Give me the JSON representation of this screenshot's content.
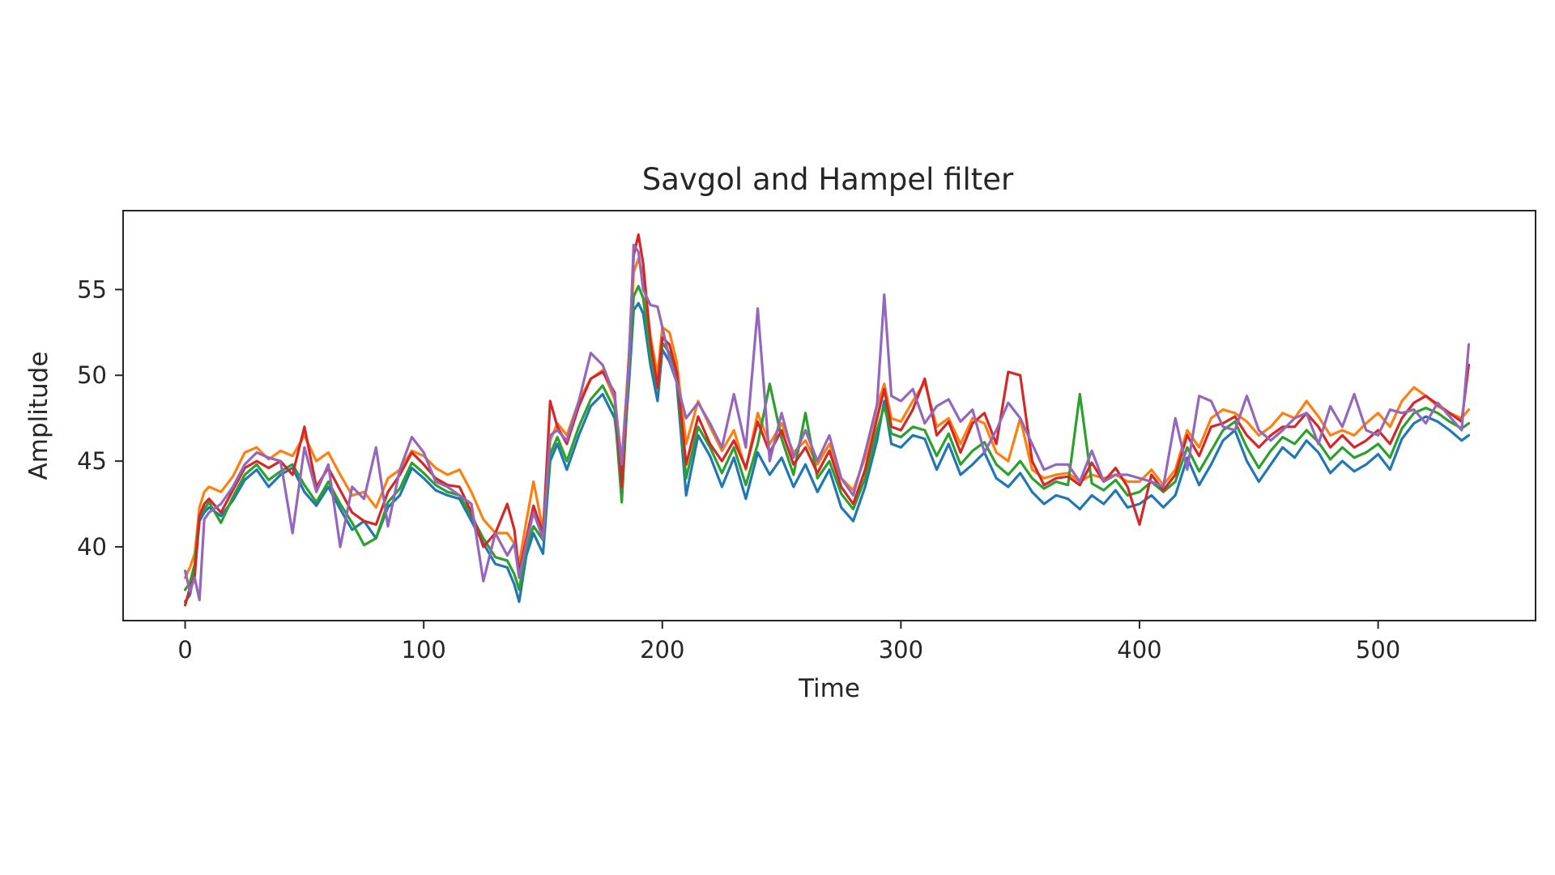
{
  "chart_data": {
    "type": "line",
    "title": "Savgol and Hampel filter",
    "xlabel": "Time",
    "ylabel": "Amplitude",
    "xlim": [
      -26,
      566
    ],
    "ylim": [
      35.7,
      59.6
    ],
    "xticks": [
      0,
      100,
      200,
      300,
      400,
      500
    ],
    "yticks": [
      40,
      45,
      50,
      55
    ],
    "grid": false,
    "colors": [
      "#1f77b4",
      "#ff7f0e",
      "#2ca02c",
      "#d62728",
      "#9467bd"
    ],
    "series": [
      {
        "x": [
          0,
          2,
          4,
          6,
          8,
          10,
          15,
          20,
          25,
          30,
          35,
          40,
          45,
          50,
          55,
          60,
          65,
          70,
          75,
          80,
          85,
          90,
          95,
          100,
          105,
          110,
          115,
          120,
          125,
          130,
          135,
          138,
          140,
          143,
          146,
          150,
          153,
          156,
          160,
          165,
          170,
          175,
          180,
          183,
          186,
          188,
          190,
          192,
          195,
          198,
          200,
          203,
          206,
          210,
          215,
          220,
          225,
          230,
          235,
          240,
          245,
          250,
          255,
          260,
          265,
          270,
          275,
          280,
          285,
          290,
          293,
          296,
          300,
          305,
          310,
          315,
          320,
          325,
          330,
          335,
          340,
          345,
          350,
          355,
          360,
          365,
          370,
          375,
          380,
          385,
          390,
          395,
          400,
          405,
          410,
          415,
          420,
          425,
          430,
          435,
          440,
          445,
          450,
          455,
          460,
          465,
          470,
          475,
          480,
          485,
          490,
          495,
          500,
          505,
          510,
          515,
          520,
          525,
          530,
          535,
          538
        ],
        "values": [
          36.8,
          37.2,
          38.6,
          41.5,
          42.0,
          42.3,
          41.8,
          42.7,
          43.9,
          44.5,
          43.5,
          44.2,
          44.6,
          43.2,
          42.4,
          43.5,
          42.2,
          41.0,
          41.5,
          40.5,
          42.3,
          43.0,
          44.6,
          44.0,
          43.3,
          43.0,
          42.8,
          41.5,
          40.2,
          39.0,
          38.8,
          37.8,
          36.8,
          39.5,
          40.8,
          39.6,
          45.0,
          46.0,
          44.5,
          46.5,
          48.2,
          48.9,
          47.5,
          44.0,
          49.5,
          53.8,
          54.2,
          53.6,
          50.6,
          48.5,
          51.5,
          50.8,
          49.6,
          43.0,
          46.5,
          45.3,
          43.5,
          45.2,
          42.8,
          45.5,
          44.2,
          45.2,
          43.5,
          44.8,
          43.2,
          44.5,
          42.3,
          41.5,
          43.5,
          46.2,
          48.5,
          46.0,
          45.8,
          46.5,
          46.3,
          44.5,
          46.0,
          44.2,
          44.8,
          45.5,
          44.0,
          43.5,
          44.3,
          43.2,
          42.5,
          43.0,
          42.8,
          42.2,
          43.0,
          42.5,
          43.3,
          42.3,
          42.5,
          43.0,
          42.3,
          43.0,
          45.2,
          43.6,
          44.8,
          46.2,
          46.8,
          45.0,
          43.8,
          44.8,
          45.8,
          45.2,
          46.2,
          45.5,
          44.3,
          45.0,
          44.4,
          44.8,
          45.4,
          44.5,
          46.3,
          47.2,
          47.6,
          47.3,
          46.8,
          46.2,
          46.5
        ]
      },
      {
        "x": [
          0,
          2,
          4,
          6,
          8,
          10,
          15,
          20,
          25,
          30,
          35,
          40,
          45,
          50,
          55,
          60,
          65,
          70,
          75,
          80,
          85,
          90,
          95,
          100,
          105,
          110,
          115,
          120,
          125,
          130,
          135,
          138,
          140,
          143,
          146,
          150,
          153,
          156,
          160,
          165,
          170,
          175,
          180,
          183,
          186,
          188,
          190,
          192,
          195,
          198,
          200,
          203,
          206,
          210,
          215,
          220,
          225,
          230,
          235,
          240,
          245,
          250,
          255,
          260,
          265,
          270,
          275,
          280,
          285,
          290,
          293,
          296,
          300,
          305,
          310,
          315,
          320,
          325,
          330,
          335,
          340,
          345,
          350,
          355,
          360,
          365,
          370,
          375,
          380,
          385,
          390,
          395,
          400,
          405,
          410,
          415,
          420,
          425,
          430,
          435,
          440,
          445,
          450,
          455,
          460,
          465,
          470,
          475,
          480,
          485,
          490,
          495,
          500,
          505,
          510,
          515,
          520,
          525,
          530,
          535,
          538
        ],
        "values": [
          38.2,
          38.8,
          39.6,
          42.3,
          43.2,
          43.5,
          43.2,
          44.1,
          45.5,
          45.8,
          45.1,
          45.6,
          45.3,
          46.5,
          45.0,
          45.5,
          44.2,
          43.0,
          43.2,
          42.3,
          44.0,
          44.5,
          45.6,
          45.3,
          44.6,
          44.2,
          44.5,
          43.2,
          41.6,
          40.8,
          40.8,
          40.2,
          39.0,
          41.5,
          43.8,
          41.0,
          46.2,
          47.2,
          46.5,
          48.5,
          49.8,
          50.3,
          48.6,
          45.0,
          51.0,
          56.0,
          56.8,
          55.8,
          52.3,
          50.0,
          52.8,
          52.5,
          50.8,
          46.0,
          48.5,
          47.0,
          45.6,
          46.8,
          44.5,
          47.8,
          46.0,
          47.2,
          45.5,
          46.2,
          44.8,
          46.0,
          44.0,
          43.3,
          45.2,
          48.2,
          49.5,
          47.5,
          47.3,
          48.5,
          49.6,
          47.0,
          47.5,
          46.0,
          47.5,
          47.2,
          45.5,
          45.0,
          47.5,
          44.5,
          44.0,
          44.2,
          44.3,
          43.8,
          44.2,
          44.0,
          44.2,
          43.8,
          43.8,
          44.5,
          43.6,
          44.5,
          46.8,
          45.8,
          47.5,
          48.0,
          47.8,
          47.3,
          46.5,
          47.0,
          47.8,
          47.5,
          48.5,
          47.6,
          46.5,
          46.8,
          46.5,
          47.2,
          47.8,
          47.0,
          48.5,
          49.3,
          48.8,
          48.2,
          47.8,
          47.5,
          48.0
        ]
      },
      {
        "x": [
          0,
          2,
          4,
          6,
          8,
          10,
          15,
          20,
          25,
          30,
          35,
          40,
          45,
          50,
          55,
          60,
          65,
          70,
          75,
          80,
          85,
          90,
          95,
          100,
          105,
          110,
          115,
          120,
          125,
          130,
          135,
          138,
          140,
          143,
          146,
          150,
          153,
          156,
          160,
          165,
          170,
          175,
          180,
          183,
          186,
          188,
          190,
          192,
          195,
          198,
          200,
          203,
          206,
          210,
          215,
          220,
          225,
          230,
          235,
          240,
          245,
          250,
          255,
          260,
          265,
          270,
          275,
          280,
          285,
          290,
          293,
          296,
          300,
          305,
          310,
          315,
          320,
          325,
          330,
          335,
          340,
          345,
          350,
          355,
          360,
          365,
          370,
          375,
          380,
          385,
          390,
          395,
          400,
          405,
          410,
          415,
          420,
          425,
          430,
          435,
          440,
          445,
          450,
          455,
          460,
          465,
          470,
          475,
          480,
          485,
          490,
          495,
          500,
          505,
          510,
          515,
          520,
          525,
          530,
          535,
          538
        ],
        "values": [
          37.5,
          37.9,
          39.0,
          41.8,
          42.2,
          42.6,
          41.4,
          42.9,
          44.2,
          44.8,
          43.9,
          44.4,
          44.8,
          43.6,
          42.6,
          43.8,
          42.5,
          41.4,
          40.1,
          40.5,
          42.6,
          43.4,
          44.9,
          44.3,
          43.6,
          43.2,
          43.0,
          41.8,
          40.5,
          39.4,
          39.2,
          38.4,
          37.5,
          40.0,
          41.2,
          40.4,
          45.4,
          46.4,
          45.0,
          47.0,
          48.6,
          49.4,
          48.0,
          42.6,
          50.2,
          54.6,
          55.2,
          54.5,
          51.2,
          49.2,
          51.9,
          51.3,
          50.0,
          44.0,
          47.0,
          45.8,
          44.3,
          45.8,
          43.6,
          46.0,
          49.5,
          46.3,
          44.2,
          47.8,
          44.0,
          45.0,
          43.1,
          42.2,
          44.0,
          46.8,
          48.2,
          46.6,
          46.4,
          47.0,
          46.8,
          45.3,
          46.6,
          44.8,
          45.6,
          46.1,
          44.8,
          44.2,
          45.0,
          44.0,
          43.4,
          43.8,
          43.6,
          48.9,
          43.7,
          43.3,
          43.9,
          43.0,
          43.2,
          43.8,
          43.2,
          43.8,
          45.8,
          44.4,
          45.6,
          46.8,
          47.3,
          45.8,
          44.6,
          45.6,
          46.4,
          46.0,
          46.8,
          46.1,
          45.1,
          45.8,
          45.2,
          45.5,
          46.0,
          45.2,
          46.9,
          47.8,
          48.1,
          47.8,
          47.3,
          46.9,
          47.2
        ]
      },
      {
        "x": [
          0,
          2,
          4,
          6,
          8,
          10,
          15,
          20,
          25,
          30,
          35,
          40,
          45,
          50,
          55,
          60,
          65,
          70,
          75,
          80,
          85,
          90,
          95,
          100,
          105,
          110,
          115,
          120,
          125,
          130,
          135,
          138,
          140,
          143,
          146,
          150,
          153,
          156,
          160,
          165,
          170,
          175,
          180,
          183,
          186,
          188,
          190,
          192,
          195,
          198,
          200,
          203,
          206,
          210,
          215,
          220,
          225,
          230,
          235,
          240,
          245,
          250,
          255,
          260,
          265,
          270,
          275,
          280,
          285,
          290,
          293,
          296,
          300,
          305,
          310,
          315,
          320,
          325,
          330,
          335,
          340,
          345,
          350,
          355,
          360,
          365,
          370,
          375,
          380,
          385,
          390,
          395,
          400,
          405,
          410,
          415,
          420,
          425,
          430,
          435,
          440,
          445,
          450,
          455,
          460,
          465,
          470,
          475,
          480,
          485,
          490,
          495,
          500,
          505,
          510,
          515,
          520,
          525,
          530,
          535,
          538
        ],
        "values": [
          36.6,
          37.6,
          38.3,
          41.8,
          42.5,
          42.8,
          42.0,
          43.3,
          44.6,
          45.0,
          44.6,
          45.0,
          44.2,
          47.0,
          43.5,
          44.6,
          43.3,
          42.0,
          41.5,
          41.3,
          43.2,
          44.2,
          45.5,
          44.8,
          44.0,
          43.6,
          43.5,
          42.0,
          40.0,
          40.8,
          42.5,
          41.0,
          38.5,
          40.5,
          42.4,
          40.8,
          48.5,
          47.0,
          46.0,
          48.2,
          49.8,
          50.2,
          49.0,
          43.5,
          51.0,
          57.0,
          58.2,
          56.5,
          52.0,
          49.3,
          52.2,
          51.8,
          50.2,
          44.8,
          47.6,
          46.0,
          45.0,
          46.2,
          44.6,
          47.3,
          45.5,
          46.8,
          44.8,
          45.8,
          44.3,
          45.6,
          43.5,
          42.5,
          44.5,
          47.5,
          49.2,
          47.0,
          46.8,
          48.0,
          49.8,
          46.5,
          47.3,
          45.5,
          47.2,
          47.8,
          46.0,
          50.2,
          50.0,
          45.0,
          43.6,
          44.0,
          44.1,
          43.6,
          44.9,
          43.8,
          44.6,
          43.5,
          41.3,
          44.2,
          43.3,
          44.2,
          46.5,
          45.3,
          47.0,
          47.2,
          47.6,
          46.5,
          45.8,
          46.5,
          47.0,
          47.0,
          47.8,
          47.0,
          45.8,
          46.5,
          45.8,
          46.2,
          46.8,
          46.0,
          47.5,
          48.4,
          48.8,
          48.3,
          47.8,
          47.3,
          50.6
        ]
      },
      {
        "x": [
          0,
          2,
          4,
          6,
          8,
          10,
          15,
          20,
          25,
          30,
          35,
          40,
          45,
          50,
          55,
          60,
          65,
          70,
          75,
          80,
          85,
          90,
          95,
          100,
          105,
          110,
          115,
          120,
          125,
          130,
          135,
          138,
          140,
          143,
          146,
          150,
          153,
          156,
          160,
          165,
          170,
          175,
          180,
          183,
          186,
          188,
          190,
          192,
          195,
          198,
          200,
          203,
          206,
          210,
          215,
          220,
          225,
          230,
          235,
          240,
          245,
          250,
          255,
          260,
          265,
          270,
          275,
          280,
          285,
          290,
          293,
          296,
          300,
          305,
          310,
          315,
          320,
          325,
          330,
          335,
          340,
          345,
          350,
          355,
          360,
          365,
          370,
          375,
          380,
          385,
          390,
          395,
          400,
          405,
          410,
          415,
          420,
          425,
          430,
          435,
          440,
          445,
          450,
          455,
          460,
          465,
          470,
          475,
          480,
          485,
          490,
          495,
          500,
          505,
          510,
          515,
          520,
          525,
          530,
          535,
          538
        ],
        "values": [
          38.6,
          37.4,
          38.2,
          36.9,
          41.6,
          42.0,
          42.5,
          43.5,
          44.8,
          45.5,
          45.2,
          45.0,
          40.8,
          45.8,
          43.2,
          44.8,
          40.0,
          43.5,
          42.8,
          45.8,
          41.2,
          44.5,
          46.4,
          45.5,
          43.8,
          43.5,
          43.0,
          42.5,
          38.0,
          40.8,
          39.5,
          40.2,
          38.2,
          40.2,
          42.0,
          40.5,
          46.5,
          46.8,
          46.2,
          48.5,
          51.3,
          50.6,
          48.8,
          44.8,
          50.6,
          57.6,
          57.2,
          55.0,
          54.1,
          54.0,
          52.8,
          51.0,
          49.6,
          47.5,
          48.4,
          47.2,
          45.8,
          48.9,
          45.8,
          53.9,
          45.0,
          47.8,
          45.2,
          46.8,
          45.0,
          46.5,
          44.0,
          43.0,
          45.5,
          48.3,
          54.7,
          48.8,
          48.5,
          49.2,
          47.2,
          48.2,
          48.6,
          47.3,
          48.0,
          45.5,
          46.8,
          48.4,
          47.5,
          46.0,
          44.5,
          44.8,
          44.8,
          43.8,
          45.6,
          43.8,
          44.2,
          44.2,
          44.0,
          43.8,
          43.5,
          47.5,
          44.5,
          48.8,
          48.5,
          47.0,
          46.8,
          48.8,
          46.8,
          46.2,
          46.8,
          47.5,
          47.8,
          46.0,
          48.2,
          47.0,
          48.9,
          46.8,
          46.5,
          48.0,
          47.8,
          48.0,
          47.2,
          48.4,
          47.6,
          46.8,
          51.8
        ]
      }
    ]
  }
}
